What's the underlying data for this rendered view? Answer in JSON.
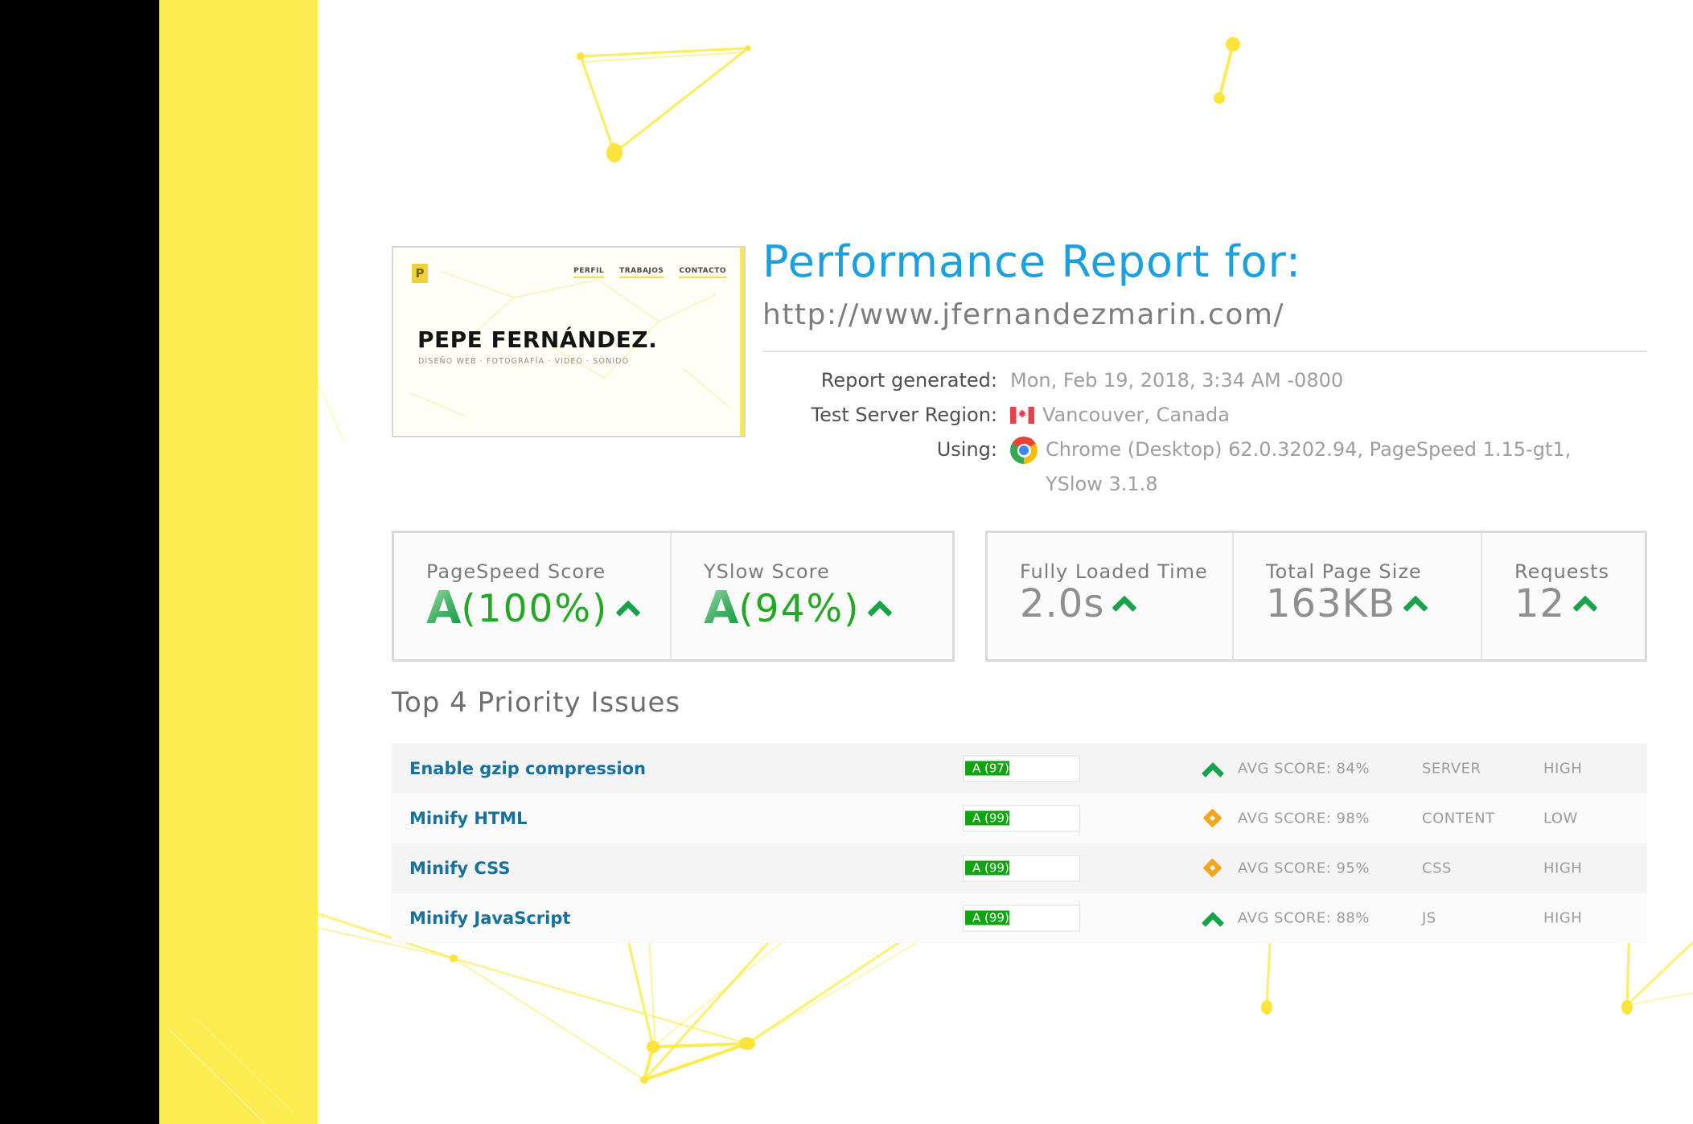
{
  "colors": {
    "accent_yellow": "#fbec4f",
    "title_blue": "#1a9fe1",
    "score_green": "#12a312",
    "grade_green_dark": "#0c9c47",
    "warn_orange": "#f7a41d",
    "link_blue": "#17719f",
    "value_gray": "#8f8f8f"
  },
  "site_preview": {
    "logo_text": "P",
    "nav_items": [
      "PERFIL",
      "TRABAJOS",
      "CONTACTO"
    ],
    "title": "PEPE FERNÁNDEZ.",
    "tagline": "DISEÑO WEB · FOTOGRAFÍA · VIDEO · SONIDO"
  },
  "header": {
    "title": "Performance Report for:",
    "url": "http://www.jfernandezmarin.com/",
    "meta": [
      {
        "label": "Report generated:",
        "icon": "none",
        "value": "Mon, Feb 19, 2018, 3:34 AM -0800"
      },
      {
        "label": "Test Server Region:",
        "icon": "canada-flag",
        "value": "Vancouver, Canada"
      },
      {
        "label": "Using:",
        "icon": "chrome",
        "value": "Chrome (Desktop) 62.0.3202.94, PageSpeed 1.15-gt1, YSlow 3.1.8"
      }
    ]
  },
  "scores": {
    "pagespeed": {
      "label": "PageSpeed Score",
      "grade": "A",
      "percent": "(100%)"
    },
    "yslow": {
      "label": "YSlow Score",
      "grade": "A",
      "percent": "(94%)"
    },
    "fully_loaded_time": {
      "label": "Fully Loaded Time",
      "value": "2.0s"
    },
    "total_page_size": {
      "label": "Total Page Size",
      "value": "163KB"
    },
    "requests": {
      "label": "Requests",
      "value": "12"
    }
  },
  "issues": {
    "heading": "Top 4 Priority Issues",
    "rows": [
      {
        "name": "Enable gzip compression",
        "badge": "A (97)",
        "fill": 97,
        "trend": "up",
        "avg": "AVG SCORE: 84%",
        "category": "SERVER",
        "priority": "HIGH"
      },
      {
        "name": "Minify HTML",
        "badge": "A (99)",
        "fill": 99,
        "trend": "steady",
        "avg": "AVG SCORE: 98%",
        "category": "CONTENT",
        "priority": "LOW"
      },
      {
        "name": "Minify CSS",
        "badge": "A (99)",
        "fill": 99,
        "trend": "steady",
        "avg": "AVG SCORE: 95%",
        "category": "CSS",
        "priority": "HIGH"
      },
      {
        "name": "Minify JavaScript",
        "badge": "A (99)",
        "fill": 99,
        "trend": "up",
        "avg": "AVG SCORE: 88%",
        "category": "JS",
        "priority": "HIGH"
      }
    ]
  }
}
